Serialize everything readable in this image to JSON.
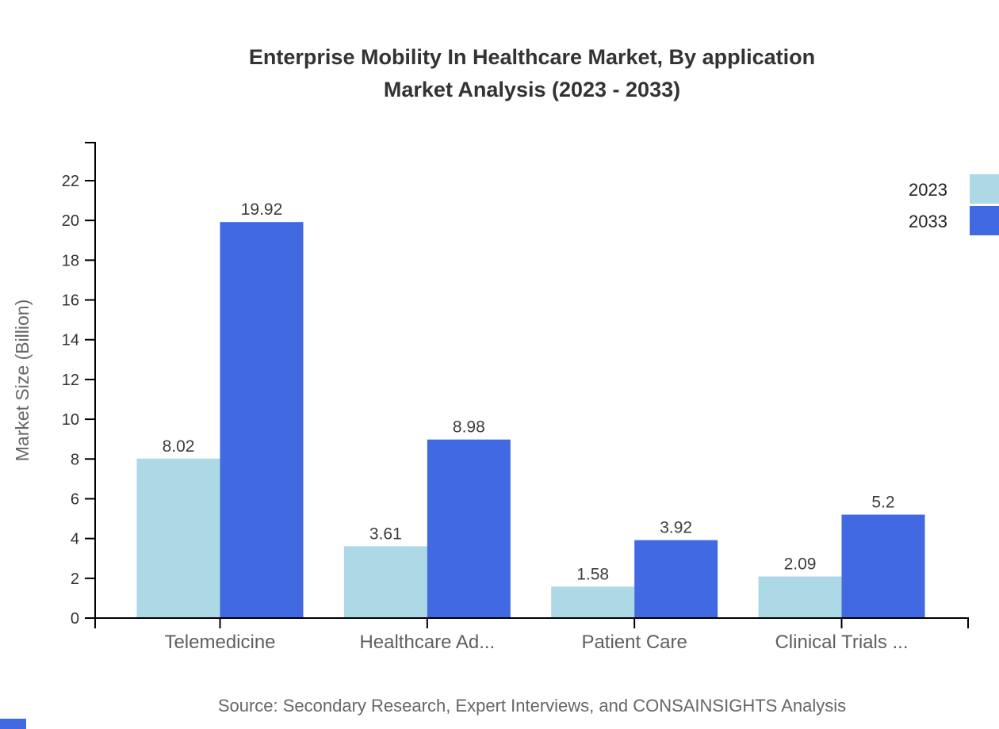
{
  "title": {
    "line1": "Enterprise Mobility In Healthcare Market, By application",
    "line2": "Market Analysis (2023 - 2033)"
  },
  "source": "Source: Secondary Research, Expert Interviews, and CONSAINSIGHTS Analysis",
  "legend": {
    "items": [
      {
        "label": "2023",
        "color": "#ADD8E6"
      },
      {
        "label": "2033",
        "color": "#4169E1"
      }
    ]
  },
  "colors": {
    "axis": "#000000",
    "title_text": "#333333",
    "muted_text": "#666666",
    "category_text": "#5f5f5f",
    "value_text": "#3d3d3d",
    "brand_mark": "#4169E1"
  },
  "chart_data": {
    "type": "bar",
    "categories": [
      "Telemedicine",
      "Healthcare Ad...",
      "Patient Care",
      "Clinical Trials ..."
    ],
    "series": [
      {
        "name": "2023",
        "color": "#ADD8E6",
        "values": [
          8.02,
          3.61,
          1.58,
          2.09
        ]
      },
      {
        "name": "2033",
        "color": "#4169E1",
        "values": [
          19.92,
          8.98,
          3.92,
          5.2
        ]
      }
    ],
    "title": "Enterprise Mobility In Healthcare Market, By application Market Analysis (2023 - 2033)",
    "xlabel": "",
    "ylabel": "Market Size (Billion)",
    "ylim": [
      0,
      22
    ],
    "ytick_step": 2,
    "grid": false,
    "legend_position": "top-right",
    "value_labels": true
  }
}
